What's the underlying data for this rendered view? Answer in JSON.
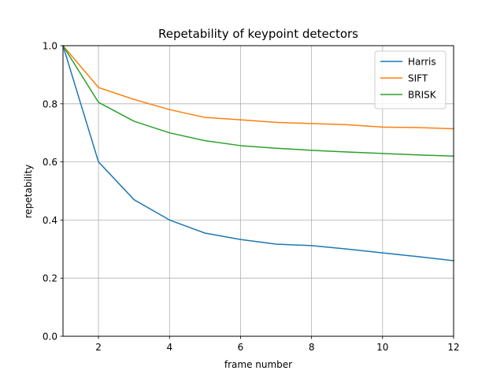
{
  "chart_data": {
    "type": "line",
    "title": "Repetability of keypoint detectors",
    "xlabel": "frame number",
    "ylabel": "repetability",
    "xlim": [
      1,
      12
    ],
    "ylim": [
      0.0,
      1.0
    ],
    "xticks": [
      2,
      4,
      6,
      8,
      10,
      12
    ],
    "xtick_labels": [
      "2",
      "4",
      "6",
      "8",
      "10",
      "12"
    ],
    "yticks": [
      0.0,
      0.2,
      0.4,
      0.6,
      0.8,
      1.0
    ],
    "ytick_labels": [
      "0.0",
      "0.2",
      "0.4",
      "0.6",
      "0.8",
      "1.0"
    ],
    "grid": true,
    "legend_position": "top-right",
    "x": [
      1,
      2,
      3,
      4,
      5,
      6,
      7,
      8,
      9,
      10,
      11,
      12
    ],
    "series": [
      {
        "name": "Harris",
        "color": "#1f77b4",
        "values": [
          1.0,
          0.6,
          0.47,
          0.4,
          0.355,
          0.333,
          0.317,
          0.312,
          0.3,
          0.287,
          0.274,
          0.26
        ]
      },
      {
        "name": "SIFT",
        "color": "#ff7f0e",
        "values": [
          1.0,
          0.856,
          0.815,
          0.78,
          0.753,
          0.745,
          0.736,
          0.732,
          0.728,
          0.72,
          0.718,
          0.714
        ]
      },
      {
        "name": "BRISK",
        "color": "#2ca02c",
        "values": [
          1.0,
          0.805,
          0.74,
          0.7,
          0.673,
          0.656,
          0.647,
          0.64,
          0.634,
          0.629,
          0.624,
          0.62
        ]
      }
    ]
  }
}
